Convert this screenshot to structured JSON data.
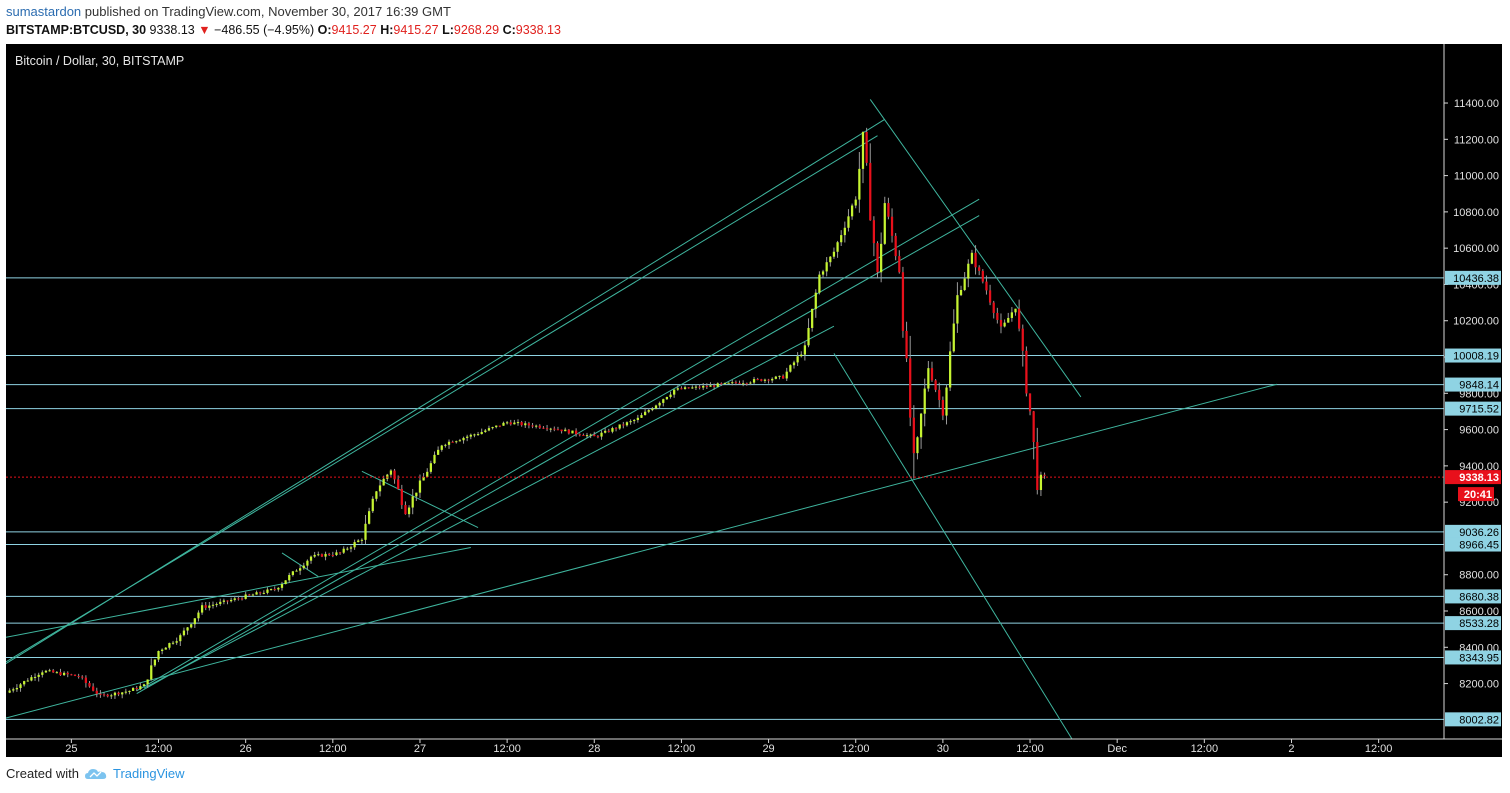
{
  "header": {
    "author": "sumastardon",
    "published": " published on TradingView.com, November 30, 2017 16:39 GMT",
    "symbol": "BITSTAMP:BTCUSD, 30",
    "last": "9338.13",
    "change_arrow": "▼",
    "change": "−486.55 (−4.95%)",
    "o_label": "O:",
    "o": "9415.27",
    "h_label": "H:",
    "h": "9415.27",
    "l_label": "L:",
    "l": "9268.29",
    "c_label": "C:",
    "c": "9338.13"
  },
  "footer": {
    "created_with": "Created with",
    "brand": "TradingView"
  },
  "chart_data": {
    "type": "candlestick",
    "title": "Bitcoin / Dollar, 30, BITSTAMP",
    "ylim": [
      7900,
      11560
    ],
    "x_range": [
      "2017-11-24T15:00",
      "2017-12-02T21:00"
    ],
    "y_ticks": [
      8200,
      8400,
      8600,
      8800,
      9200,
      9400,
      9600,
      9800,
      10000,
      10200,
      10400,
      10600,
      10800,
      11000,
      11200,
      11400
    ],
    "y_tick_format": "2dp",
    "x_ticks": [
      {
        "t": "2017-11-25T00:00",
        "label": "25"
      },
      {
        "t": "2017-11-25T12:00",
        "label": "12:00"
      },
      {
        "t": "2017-11-26T00:00",
        "label": "26"
      },
      {
        "t": "2017-11-26T12:00",
        "label": "12:00"
      },
      {
        "t": "2017-11-27T00:00",
        "label": "27"
      },
      {
        "t": "2017-11-27T12:00",
        "label": "12:00"
      },
      {
        "t": "2017-11-28T00:00",
        "label": "28"
      },
      {
        "t": "2017-11-28T12:00",
        "label": "12:00"
      },
      {
        "t": "2017-11-29T00:00",
        "label": "29"
      },
      {
        "t": "2017-11-29T12:00",
        "label": "12:00"
      },
      {
        "t": "2017-11-30T00:00",
        "label": "30"
      },
      {
        "t": "2017-11-30T12:00",
        "label": "12:00"
      },
      {
        "t": "2017-12-01T00:00",
        "label": "Dec"
      },
      {
        "t": "2017-12-01T12:00",
        "label": "12:00"
      },
      {
        "t": "2017-12-02T00:00",
        "label": "2"
      },
      {
        "t": "2017-12-02T12:00",
        "label": "12:00"
      }
    ],
    "horizontal_levels": [
      10436.38,
      10008.19,
      9848.14,
      9715.52,
      9036.26,
      8966.45,
      8680.38,
      8533.28,
      8343.95,
      8002.82
    ],
    "current_price": 9338.13,
    "countdown": "20:41",
    "colors": {
      "up": "#c6f432",
      "down": "#e8101b",
      "lines": "#3fb59e",
      "levels": "#8fd3e3",
      "price": "#e8101b"
    },
    "price_path": [
      [
        "2017-11-24T15:00",
        8150
      ],
      [
        "2017-11-24T20:00",
        8270
      ],
      [
        "2017-11-25T01:00",
        8240
      ],
      [
        "2017-11-25T04:00",
        8130
      ],
      [
        "2017-11-25T08:00",
        8160
      ],
      [
        "2017-11-25T10:00",
        8190
      ],
      [
        "2017-11-25T12:00",
        8380
      ],
      [
        "2017-11-25T15:00",
        8460
      ],
      [
        "2017-11-25T18:00",
        8620
      ],
      [
        "2017-11-25T22:00",
        8660
      ],
      [
        "2017-11-26T04:00",
        8720
      ],
      [
        "2017-11-26T09:00",
        8900
      ],
      [
        "2017-11-26T13:00",
        8920
      ],
      [
        "2017-11-26T16:00",
        9000
      ],
      [
        "2017-11-26T18:00",
        9270
      ],
      [
        "2017-11-26T20:00",
        9380
      ],
      [
        "2017-11-26T22:00",
        9150
      ],
      [
        "2017-11-27T00:00",
        9300
      ],
      [
        "2017-11-27T03:00",
        9520
      ],
      [
        "2017-11-27T08:00",
        9580
      ],
      [
        "2017-11-27T12:00",
        9640
      ],
      [
        "2017-11-27T18:00",
        9610
      ],
      [
        "2017-11-28T00:00",
        9560
      ],
      [
        "2017-11-28T06:00",
        9660
      ],
      [
        "2017-11-28T11:00",
        9820
      ],
      [
        "2017-11-28T16:00",
        9840
      ],
      [
        "2017-11-28T22:00",
        9870
      ],
      [
        "2017-11-29T02:00",
        9890
      ],
      [
        "2017-11-29T05:00",
        10050
      ],
      [
        "2017-11-29T07:00",
        10450
      ],
      [
        "2017-11-29T09:00",
        10580
      ],
      [
        "2017-11-29T12:00",
        10880
      ],
      [
        "2017-11-29T13:00",
        11200
      ],
      [
        "2017-11-29T15:00",
        10440
      ],
      [
        "2017-11-29T16:00",
        10850
      ],
      [
        "2017-11-29T18:00",
        10480
      ],
      [
        "2017-11-29T20:00",
        9400
      ],
      [
        "2017-11-29T22:00",
        9950
      ],
      [
        "2017-11-30T00:00",
        9700
      ],
      [
        "2017-11-30T02:00",
        10330
      ],
      [
        "2017-11-30T04:00",
        10560
      ],
      [
        "2017-11-30T06:00",
        10370
      ],
      [
        "2017-11-30T08:00",
        10150
      ],
      [
        "2017-11-30T10:00",
        10280
      ],
      [
        "2017-11-30T12:00",
        9700
      ],
      [
        "2017-11-30T13:00",
        9320
      ],
      [
        "2017-11-30T14:00",
        9338
      ]
    ],
    "trend_lines": [
      [
        [
          "2017-11-24T15:00",
          8310
        ],
        [
          "2017-11-29T16:00",
          11310
        ]
      ],
      [
        [
          "2017-11-24T15:00",
          8320
        ],
        [
          "2017-11-29T15:00",
          11220
        ]
      ],
      [
        [
          "2017-11-25T09:00",
          8160
        ],
        [
          "2017-11-30T05:00",
          10870
        ]
      ],
      [
        [
          "2017-11-25T09:00",
          8145
        ],
        [
          "2017-11-30T05:00",
          10780
        ]
      ],
      [
        [
          "2017-11-25T10:00",
          8175
        ],
        [
          "2017-11-29T09:00",
          10170
        ]
      ],
      [
        [
          "2017-11-24T15:00",
          8010
        ],
        [
          "2017-12-01T22:00",
          9850
        ]
      ],
      [
        [
          "2017-11-24T15:00",
          8455
        ],
        [
          "2017-11-27T07:00",
          8950
        ]
      ],
      [
        [
          "2017-11-29T14:00",
          11420
        ],
        [
          "2017-11-30T19:00",
          9780
        ]
      ],
      [
        [
          "2017-11-29T09:00",
          10020
        ],
        [
          "2017-11-30T18:00",
          7880
        ]
      ],
      [
        [
          "2017-11-26T05:00",
          8920
        ],
        [
          "2017-11-26T10:00",
          8790
        ]
      ],
      [
        [
          "2017-11-26T16:00",
          9370
        ],
        [
          "2017-11-27T08:00",
          9060
        ]
      ]
    ]
  }
}
